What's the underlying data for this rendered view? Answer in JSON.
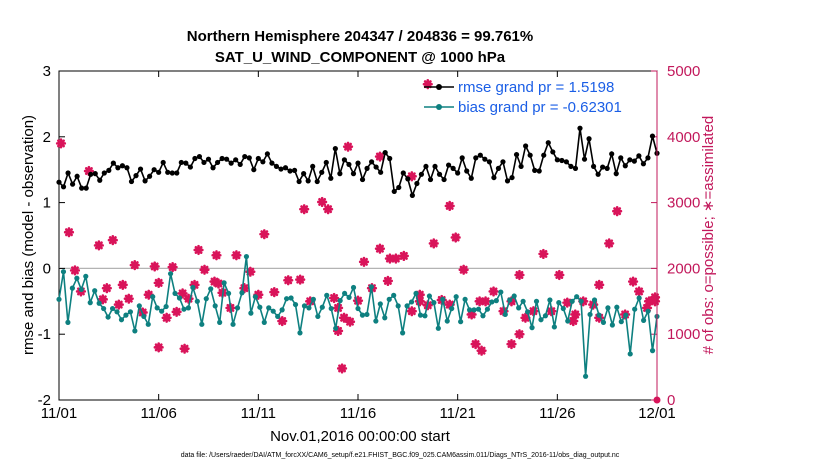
{
  "chart_data": {
    "type": "line",
    "title": "Northern Hemisphere 204347 / 204836 = 99.761%",
    "subtitle": "SAT_U_WIND_COMPONENT @ 1000 hPa",
    "xlabel": "Nov.01,2016 00:00:00 start",
    "ylabel_left": "rmse and bias (model - observation)",
    "ylabel_right": "# of obs: o=possible; ∗=assimilated",
    "footnote": "data file: /Users/raeder/DAI/ATM_forcXX/CAM6_setup/f.e21.FHIST_BGC.f09_025.CAM6assim.011/Diags_NTrS_2016-11/obs_diag_output.nc",
    "xlim": [
      0,
      30
    ],
    "x_ticks": [
      0,
      5,
      10,
      15,
      20,
      25,
      30
    ],
    "x_tick_labels": [
      "11/01",
      "11/06",
      "11/11",
      "11/16",
      "11/21",
      "11/26",
      "12/01"
    ],
    "ylim_left": [
      -2,
      3
    ],
    "y_ticks_left": [
      -2,
      -1,
      0,
      1,
      2,
      3
    ],
    "ylim_right": [
      0,
      5000
    ],
    "y_ticks_right": [
      0,
      1000,
      2000,
      3000,
      4000,
      5000
    ],
    "zero_line": 0,
    "legend_location": "top-right",
    "colors": {
      "rmse": "#000000",
      "bias": "#0e8080",
      "obs": "#d9145a",
      "right_axis": "#c2185b",
      "legend_text": "#1a5ee6",
      "zero_line": "#b3b3b3"
    },
    "series": [
      {
        "name": "rmse",
        "legend_label": "rmse grand pr = 1.5198",
        "color": "#000000",
        "values": [
          1.31,
          1.24,
          1.45,
          1.28,
          1.4,
          1.22,
          1.22,
          1.43,
          1.44,
          1.34,
          1.45,
          1.49,
          1.6,
          1.53,
          1.56,
          1.53,
          1.32,
          1.41,
          1.51,
          1.33,
          1.4,
          1.5,
          1.46,
          1.61,
          1.46,
          1.45,
          1.45,
          1.61,
          1.6,
          1.54,
          1.67,
          1.7,
          1.61,
          1.66,
          1.53,
          1.61,
          1.67,
          1.66,
          1.6,
          1.65,
          1.58,
          1.7,
          1.68,
          1.5,
          1.67,
          1.62,
          1.74,
          1.6,
          1.55,
          1.51,
          1.53,
          1.48,
          1.49,
          1.32,
          1.44,
          1.33,
          1.55,
          1.32,
          1.46,
          1.61,
          1.37,
          1.82,
          1.44,
          1.65,
          1.58,
          1.44,
          1.6,
          1.35,
          1.52,
          1.62,
          1.54,
          1.46,
          1.76,
          1.67,
          1.17,
          1.23,
          1.45,
          1.36,
          1.11,
          1.29,
          1.43,
          1.55,
          1.35,
          1.55,
          1.43,
          1.35,
          1.57,
          1.52,
          1.45,
          1.68,
          1.48,
          1.37,
          1.68,
          1.72,
          1.66,
          1.62,
          1.38,
          1.52,
          1.62,
          1.33,
          1.38,
          1.73,
          1.55,
          1.86,
          1.72,
          1.49,
          1.48,
          1.72,
          1.91,
          1.77,
          1.65,
          1.64,
          1.62,
          1.55,
          1.52,
          2.13,
          1.66,
          1.97,
          1.55,
          1.43,
          1.54,
          1.52,
          1.74,
          1.44,
          1.68,
          1.56,
          1.65,
          1.63,
          1.71,
          1.59,
          1.68,
          2.01,
          1.75
        ]
      },
      {
        "name": "bias",
        "legend_label": "bias grand pr = -0.62301",
        "color": "#0e8080",
        "values": [
          -0.47,
          -0.05,
          -0.82,
          -0.3,
          -0.15,
          -0.32,
          -0.12,
          -0.52,
          -0.34,
          -0.53,
          -0.61,
          -0.74,
          -0.61,
          -0.66,
          -0.78,
          -0.71,
          -0.66,
          -0.95,
          -0.57,
          -0.73,
          -0.85,
          -0.43,
          -0.6,
          -0.65,
          -0.58,
          -0.08,
          -0.38,
          -0.45,
          -0.62,
          -0.6,
          -0.29,
          -0.5,
          -0.85,
          -0.46,
          -0.31,
          -0.57,
          -0.82,
          -0.22,
          -0.38,
          -0.85,
          -0.6,
          -0.37,
          0.18,
          -0.68,
          -0.43,
          -0.59,
          -0.82,
          -0.6,
          -0.65,
          -0.73,
          -0.63,
          -0.46,
          -0.45,
          -0.55,
          -0.98,
          -0.57,
          -0.6,
          -0.47,
          -0.73,
          -0.59,
          -0.41,
          -0.61,
          -0.91,
          -0.49,
          -0.38,
          -0.44,
          -0.29,
          -0.61,
          -0.71,
          -0.7,
          -0.28,
          -0.8,
          -0.54,
          -0.75,
          -0.47,
          -0.41,
          -0.57,
          -0.98,
          -0.57,
          -0.51,
          -0.38,
          -0.71,
          -0.72,
          -0.42,
          -0.52,
          -0.91,
          -0.47,
          -0.8,
          -0.61,
          -0.43,
          -0.81,
          -0.47,
          -0.63,
          -0.63,
          -0.62,
          -0.72,
          -0.62,
          -0.51,
          -0.49,
          -0.36,
          -0.7,
          -0.48,
          -0.42,
          -0.6,
          -0.5,
          -0.66,
          -0.9,
          -0.5,
          -0.78,
          -0.72,
          -0.48,
          -0.89,
          -0.52,
          -0.61,
          -0.8,
          -0.5,
          -0.43,
          -0.5,
          -1.64,
          -0.7,
          -0.48,
          -0.71,
          -0.82,
          -0.6,
          -0.86,
          -0.59,
          -0.81,
          -0.71,
          -1.3,
          -0.62,
          -0.45,
          -0.79,
          -0.65,
          -1.25,
          -0.73
        ]
      },
      {
        "name": "obs_assimilated",
        "axis": "right",
        "marker": "star",
        "color": "#d9145a",
        "x": [
          0.1,
          0.5,
          0.8,
          1.1,
          1.5,
          2.0,
          2.2,
          2.4,
          2.7,
          3.0,
          3.2,
          3.5,
          3.8,
          4.2,
          4.5,
          4.8,
          5.0,
          5.4,
          5.7,
          5.9,
          6.2,
          6.5,
          6.8,
          7.0,
          7.3,
          7.8,
          8.0,
          8.2,
          8.6,
          8.9,
          9.3,
          9.6,
          10.0,
          10.3,
          10.8,
          11.2,
          11.5,
          12.1,
          12.6,
          13.2,
          13.8,
          14.0,
          14.3,
          14.6,
          15.0,
          15.3,
          15.7,
          16.1,
          16.5,
          16.9,
          17.3,
          17.7,
          18.1,
          18.5,
          18.8,
          19.2,
          19.6,
          19.9,
          20.3,
          20.7,
          21.1,
          21.4,
          21.8,
          22.3,
          22.7,
          23.1,
          23.4,
          23.8,
          24.3,
          24.7,
          25.1,
          25.5,
          25.9,
          26.3,
          26.8,
          27.1,
          27.6,
          28.0,
          28.4,
          28.8,
          29.1,
          29.5,
          29.9
        ],
        "values": [
          3900,
          2550,
          1970,
          1650,
          3480,
          2350,
          1530,
          1700,
          2430,
          1450,
          1750,
          1540,
          2050,
          1330,
          1600,
          2030,
          1780,
          1250,
          2020,
          1340,
          1620,
          1540,
          1750,
          2280,
          1980,
          1800,
          1770,
          1630,
          1400,
          2200,
          1700,
          1950,
          1600,
          2520,
          1640,
          1200,
          1820,
          1830,
          1500,
          3010,
          1550,
          1400,
          1250,
          1190,
          1510,
          2100,
          1700,
          2300,
          1810,
          2150,
          2190,
          1350,
          1600,
          1440,
          2380,
          1520,
          1450,
          2470,
          1980,
          1300,
          1500,
          1500,
          1650,
          1350,
          1500,
          1900,
          1250,
          1350,
          2220,
          1350,
          1900,
          1480,
          1300,
          1500,
          1450,
          1750,
          2380,
          2870,
          1300,
          1800,
          1650,
          1400,
          1560
        ]
      }
    ],
    "labeled_obs_points": [
      {
        "x": 16.1,
        "value": 3700
      },
      {
        "x": 14.5,
        "value": 3850
      },
      {
        "x": 13.5,
        "value": 2900
      },
      {
        "x": 12.3,
        "value": 2900
      },
      {
        "x": 18.5,
        "value": 4800
      },
      {
        "x": 17.7,
        "value": 3400
      },
      {
        "x": 19.6,
        "value": 2950
      },
      {
        "x": 16.6,
        "value": 2150
      },
      {
        "x": 7.9,
        "value": 2200
      },
      {
        "x": 18.1,
        "value": 1500
      },
      {
        "x": 14.0,
        "value": 1050
      },
      {
        "x": 20.9,
        "value": 850
      },
      {
        "x": 21.2,
        "value": 750
      },
      {
        "x": 23.1,
        "value": 1000
      },
      {
        "x": 22.7,
        "value": 850
      },
      {
        "x": 5.0,
        "value": 800
      },
      {
        "x": 6.3,
        "value": 780
      },
      {
        "x": 14.2,
        "value": 480
      },
      {
        "x": 25.8,
        "value": 1200
      },
      {
        "x": 27.1,
        "value": 1250
      },
      {
        "x": 29.6,
        "value": 1500
      },
      {
        "x": 29.9,
        "value": 1500
      }
    ]
  }
}
